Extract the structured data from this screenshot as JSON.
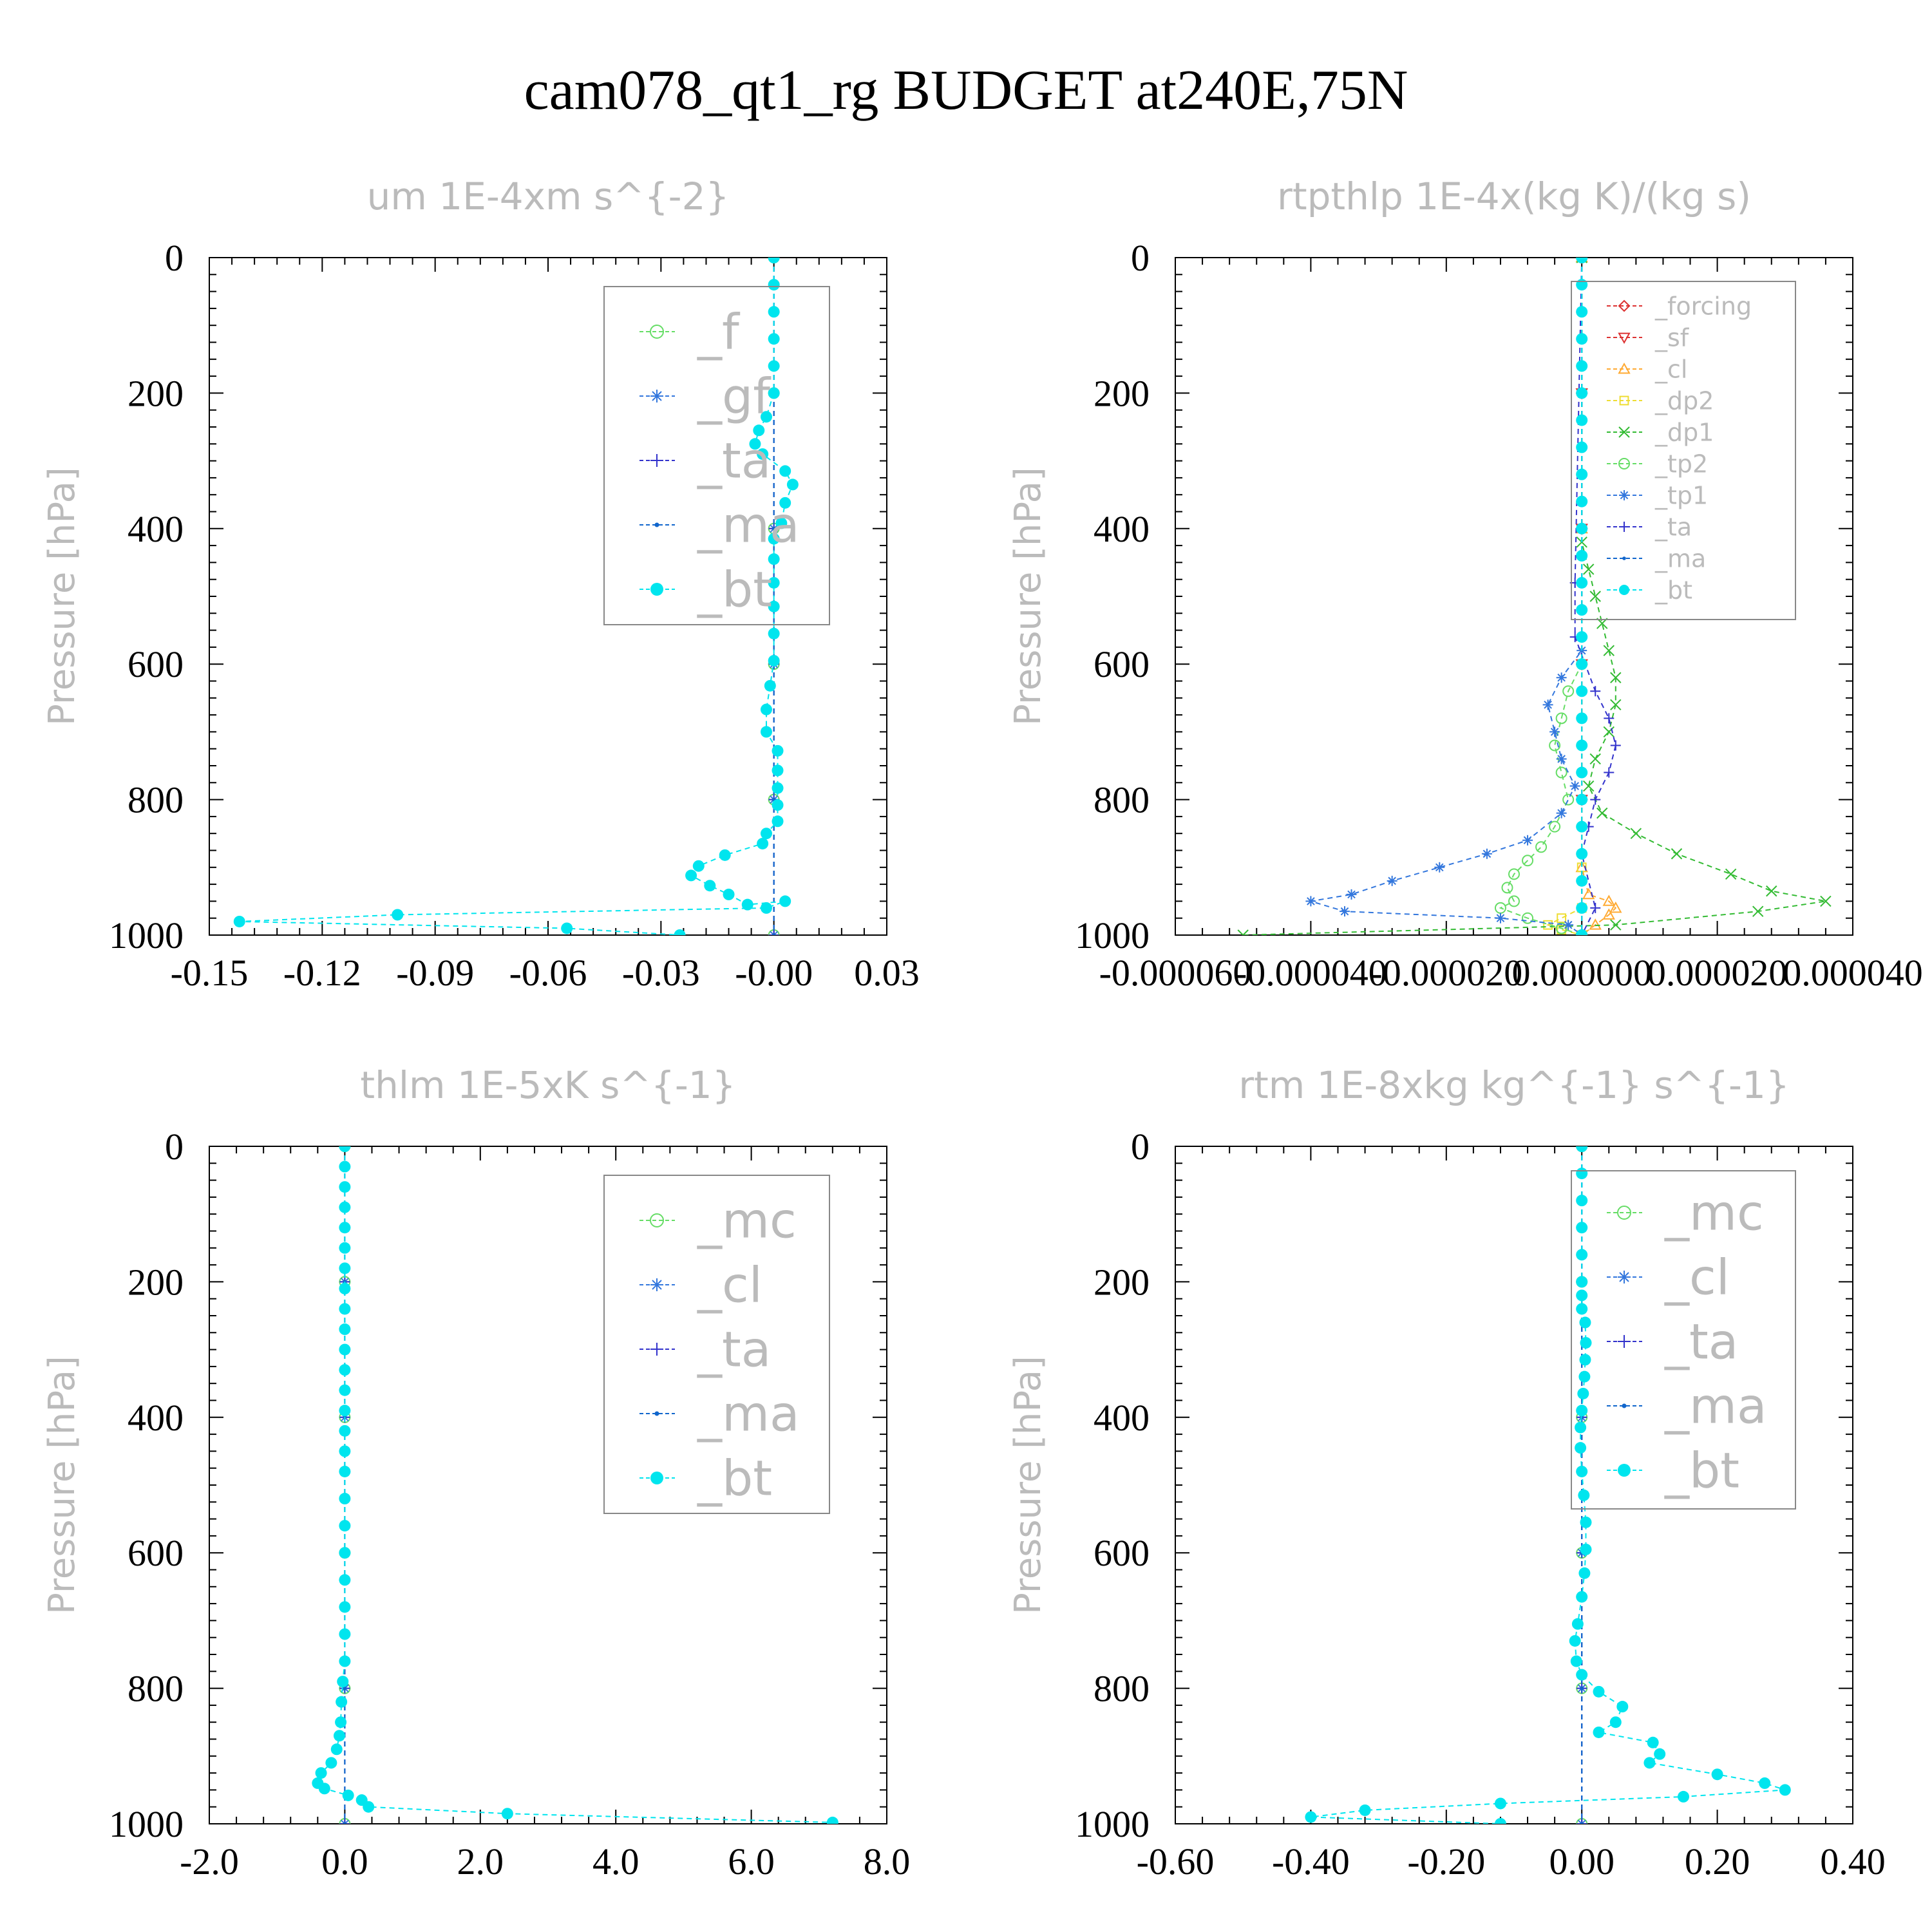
{
  "title": "cam078_qt1_rg  BUDGET at240E,75N",
  "chart_data": [
    {
      "type": "line",
      "title": "um  1E-4xm s^{-2}",
      "ylabel": "Pressure [hPa]",
      "xlim": [
        -0.15,
        0.03
      ],
      "ylim": [
        1000,
        0
      ],
      "xticks": [
        "-0.15",
        "-0.12",
        "-0.09",
        "-0.06",
        "-0.03",
        "-0.00",
        "0.03"
      ],
      "yticks": [
        "0",
        "200",
        "400",
        "600",
        "800",
        "1000"
      ],
      "legend_position": "top-right",
      "series": [
        {
          "name": "_f",
          "color": "#66dd66",
          "marker": "circle-open",
          "x": [
            0,
            0,
            0,
            0,
            0,
            0
          ],
          "y": [
            0,
            200,
            400,
            600,
            800,
            1000
          ]
        },
        {
          "name": "_gf",
          "color": "#3377dd",
          "marker": "star",
          "x": [
            0,
            0,
            0,
            0,
            0,
            0
          ],
          "y": [
            0,
            200,
            400,
            600,
            800,
            1000
          ]
        },
        {
          "name": "_ta",
          "color": "#3333cc",
          "marker": "plus",
          "x": [
            0,
            0,
            0,
            0,
            0,
            0
          ],
          "y": [
            0,
            200,
            400,
            600,
            800,
            1000
          ]
        },
        {
          "name": "_ma",
          "color": "#1166cc",
          "marker": "dot",
          "x": [
            0,
            0,
            0,
            0,
            0,
            0
          ],
          "y": [
            0,
            200,
            400,
            600,
            800,
            1000
          ]
        },
        {
          "name": "_bt",
          "color": "#00e5ee",
          "marker": "circle-filled",
          "x": [
            0,
            0,
            0,
            0,
            0,
            0,
            -0.002,
            -0.004,
            -0.005,
            -0.003,
            0.003,
            0.005,
            0.003,
            0.002,
            0,
            0,
            0,
            0,
            0,
            0,
            -0.001,
            -0.002,
            -0.002,
            0.001,
            0.001,
            0.001,
            0.001,
            0.001,
            -0.002,
            -0.003,
            -0.013,
            -0.02,
            -0.022,
            -0.017,
            -0.012,
            -0.007,
            0.003,
            -0.002,
            -0.1,
            -0.142,
            -0.055,
            -0.025
          ],
          "y": [
            0,
            40,
            80,
            120,
            160,
            200,
            235,
            255,
            275,
            290,
            315,
            335,
            362,
            392,
            415,
            445,
            480,
            515,
            555,
            595,
            632,
            667,
            700,
            728,
            757,
            783,
            808,
            832,
            850,
            865,
            882,
            898,
            912,
            927,
            940,
            955,
            950,
            960,
            970,
            980,
            990,
            1000
          ]
        }
      ]
    },
    {
      "type": "line",
      "title": "rtpthlp  1E-4x(kg K)/(kg s)",
      "ylabel": "Pressure [hPa]",
      "xlim": [
        -6e-05,
        4e-05
      ],
      "ylim": [
        1000,
        0
      ],
      "xticks": [
        "-0.000060",
        "-0.000040",
        "-0.000020",
        "0.000000",
        "0.000020",
        "0.000040"
      ],
      "yticks": [
        "0",
        "200",
        "400",
        "600",
        "800",
        "1000"
      ],
      "legend_position": "top-right",
      "series": [
        {
          "name": "_forcing",
          "color": "#dd3333",
          "marker": "diamond",
          "x": [
            0,
            0,
            0,
            0,
            0,
            0
          ],
          "y": [
            0,
            200,
            400,
            600,
            800,
            1000
          ]
        },
        {
          "name": "_sf",
          "color": "#dd3333",
          "marker": "triangle-down",
          "x": [
            0,
            0,
            0,
            0,
            0,
            0
          ],
          "y": [
            0,
            200,
            400,
            600,
            800,
            1000
          ]
        },
        {
          "name": "_cl",
          "color": "#ffaa33",
          "marker": "triangle-up",
          "x": [
            0,
            0,
            0,
            1e-06,
            4e-06,
            5e-06,
            4e-06,
            2e-06,
            0
          ],
          "y": [
            0,
            400,
            900,
            940,
            950,
            960,
            970,
            985,
            1000
          ]
        },
        {
          "name": "_dp2",
          "color": "#eedd33",
          "marker": "square",
          "x": [
            0,
            0,
            0,
            -3e-06,
            -5e-06,
            -3e-06,
            0
          ],
          "y": [
            0,
            900,
            960,
            975,
            985,
            992,
            1000
          ]
        },
        {
          "name": "_dp1",
          "color": "#33bb33",
          "marker": "x",
          "x": [
            0,
            0,
            1e-06,
            2e-06,
            3e-06,
            4e-06,
            5e-06,
            5e-06,
            4e-06,
            2e-06,
            1e-06,
            3e-06,
            8e-06,
            1.4e-05,
            2.2e-05,
            2.8e-05,
            3.6e-05,
            2.6e-05,
            5e-06,
            -5e-05
          ],
          "y": [
            0,
            420,
            460,
            500,
            540,
            580,
            620,
            660,
            700,
            740,
            780,
            820,
            850,
            880,
            910,
            935,
            950,
            965,
            985,
            1000
          ]
        },
        {
          "name": "_tp2",
          "color": "#66dd66",
          "marker": "circle-open",
          "x": [
            0,
            0,
            -2e-06,
            -3e-06,
            -4e-06,
            -3e-06,
            -2e-06,
            -4e-06,
            -6e-06,
            -8e-06,
            -1e-05,
            -1.1e-05,
            -1e-05,
            -1.2e-05,
            -8e-06,
            -3e-06,
            0
          ],
          "y": [
            0,
            600,
            640,
            680,
            720,
            760,
            800,
            840,
            870,
            890,
            910,
            930,
            950,
            960,
            975,
            990,
            1000
          ]
        },
        {
          "name": "_tp1",
          "color": "#3377dd",
          "marker": "star",
          "x": [
            0,
            0,
            -3e-06,
            -5e-06,
            -4e-06,
            -3e-06,
            -1e-06,
            -3e-06,
            -8e-06,
            -1.4e-05,
            -2.1e-05,
            -2.8e-05,
            -3.4e-05,
            -4e-05,
            -3.5e-05,
            -1.2e-05,
            -2e-06,
            0
          ],
          "y": [
            0,
            580,
            620,
            660,
            700,
            740,
            780,
            820,
            860,
            880,
            900,
            920,
            940,
            950,
            965,
            975,
            985,
            1000
          ]
        },
        {
          "name": "_ta",
          "color": "#3333cc",
          "marker": "plus",
          "x": [
            0,
            -1e-06,
            -1e-06,
            2e-06,
            4e-06,
            5e-06,
            4e-06,
            2e-06,
            1e-06,
            0,
            2e-06,
            0
          ],
          "y": [
            0,
            480,
            560,
            640,
            680,
            720,
            760,
            800,
            840,
            880,
            960,
            1000
          ]
        },
        {
          "name": "_ma",
          "color": "#1166cc",
          "marker": "dot",
          "x": [
            0,
            0,
            0,
            0,
            0,
            0
          ],
          "y": [
            0,
            200,
            400,
            600,
            800,
            1000
          ]
        },
        {
          "name": "_bt",
          "color": "#00e5ee",
          "marker": "circle-filled",
          "x": [
            0,
            0,
            0,
            0,
            0,
            0,
            0,
            0,
            0,
            0,
            0,
            0,
            0,
            0,
            0,
            0,
            0,
            0,
            0,
            0,
            0,
            0,
            0,
            0,
            0,
            0
          ],
          "y": [
            0,
            40,
            80,
            120,
            160,
            200,
            240,
            280,
            320,
            360,
            400,
            440,
            480,
            520,
            560,
            600,
            640,
            680,
            720,
            760,
            800,
            840,
            880,
            920,
            960,
            1000
          ]
        }
      ]
    },
    {
      "type": "line",
      "title": "thlm  1E-5xK s^{-1}",
      "ylabel": "Pressure [hPa]",
      "xlim": [
        -2.0,
        8.0
      ],
      "ylim": [
        1000,
        0
      ],
      "xticks": [
        "-2.0",
        "0.0",
        "2.0",
        "4.0",
        "6.0",
        "8.0"
      ],
      "yticks": [
        "0",
        "200",
        "400",
        "600",
        "800",
        "1000"
      ],
      "legend_position": "top-right",
      "series": [
        {
          "name": "_mc",
          "color": "#66dd66",
          "marker": "circle-open",
          "x": [
            0,
            0,
            0,
            0,
            0,
            0
          ],
          "y": [
            0,
            200,
            400,
            600,
            800,
            1000
          ]
        },
        {
          "name": "_cl",
          "color": "#3377dd",
          "marker": "star",
          "x": [
            0,
            0,
            0,
            0,
            0,
            0
          ],
          "y": [
            0,
            200,
            400,
            600,
            800,
            1000
          ]
        },
        {
          "name": "_ta",
          "color": "#3333cc",
          "marker": "plus",
          "x": [
            0,
            0,
            0,
            0,
            0,
            0
          ],
          "y": [
            0,
            200,
            400,
            600,
            800,
            1000
          ]
        },
        {
          "name": "_ma",
          "color": "#1166cc",
          "marker": "dot",
          "x": [
            0,
            0,
            0,
            0,
            0,
            0
          ],
          "y": [
            0,
            200,
            400,
            600,
            800,
            1000
          ]
        },
        {
          "name": "_bt",
          "color": "#00e5ee",
          "marker": "circle-filled",
          "x": [
            0,
            0,
            0,
            0,
            0,
            0,
            0,
            0,
            0,
            0,
            0,
            0,
            0,
            0,
            0,
            0,
            0,
            0,
            0,
            0,
            0,
            0,
            0,
            0,
            -0.03,
            -0.05,
            -0.06,
            -0.08,
            -0.12,
            -0.2,
            -0.35,
            -0.4,
            -0.3,
            0.05,
            0.25,
            0.35,
            2.4,
            7.2
          ],
          "y": [
            0,
            30,
            60,
            90,
            120,
            150,
            180,
            210,
            240,
            270,
            300,
            330,
            360,
            390,
            420,
            450,
            480,
            520,
            560,
            600,
            640,
            680,
            720,
            760,
            790,
            820,
            850,
            870,
            890,
            910,
            925,
            940,
            948,
            958,
            965,
            975,
            985,
            998
          ]
        }
      ]
    },
    {
      "type": "line",
      "title": "rtm  1E-8xkg kg^{-1} s^{-1}",
      "ylabel": "Pressure [hPa]",
      "xlim": [
        -0.6,
        0.4
      ],
      "ylim": [
        1000,
        0
      ],
      "xticks": [
        "-0.60",
        "-0.40",
        "-0.20",
        "0.00",
        "0.20",
        "0.40"
      ],
      "yticks": [
        "0",
        "200",
        "400",
        "600",
        "800",
        "1000"
      ],
      "legend_position": "top-right",
      "series": [
        {
          "name": "_mc",
          "color": "#66dd66",
          "marker": "circle-open",
          "x": [
            0,
            0,
            0,
            0,
            0,
            0
          ],
          "y": [
            0,
            200,
            400,
            600,
            800,
            1000
          ]
        },
        {
          "name": "_cl",
          "color": "#3377dd",
          "marker": "star",
          "x": [
            0,
            0,
            0,
            0,
            0,
            0
          ],
          "y": [
            0,
            200,
            400,
            600,
            800,
            1000
          ]
        },
        {
          "name": "_ta",
          "color": "#3333cc",
          "marker": "plus",
          "x": [
            0,
            0,
            0,
            0,
            0,
            0
          ],
          "y": [
            0,
            200,
            400,
            600,
            800,
            1000
          ]
        },
        {
          "name": "_ma",
          "color": "#1166cc",
          "marker": "dot",
          "x": [
            0,
            0,
            0,
            0,
            0,
            0
          ],
          "y": [
            0,
            200,
            400,
            600,
            800,
            1000
          ]
        },
        {
          "name": "_bt",
          "color": "#00e5ee",
          "marker": "circle-filled",
          "x": [
            0,
            0,
            0,
            0,
            0,
            0,
            0,
            0,
            0.005,
            0.006,
            0.005,
            0.004,
            0.002,
            0,
            -0.002,
            -0.002,
            0,
            0.003,
            0.006,
            0.006,
            0.004,
            0,
            -0.006,
            -0.01,
            -0.008,
            0,
            0.025,
            0.06,
            0.05,
            0.025,
            0.105,
            0.115,
            0.1,
            0.2,
            0.27,
            0.3,
            0.15,
            -0.12,
            -0.32,
            -0.4,
            -0.12
          ],
          "y": [
            0,
            40,
            80,
            120,
            160,
            200,
            220,
            240,
            260,
            290,
            315,
            340,
            365,
            390,
            415,
            445,
            480,
            515,
            555,
            595,
            630,
            665,
            705,
            730,
            760,
            780,
            805,
            827,
            850,
            865,
            880,
            897,
            910,
            927,
            940,
            950,
            960,
            970,
            980,
            990,
            1000
          ]
        }
      ]
    }
  ]
}
